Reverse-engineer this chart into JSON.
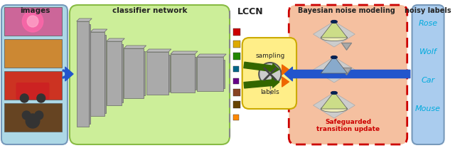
{
  "title": "LCCN",
  "images_label": "images",
  "classifier_label": "classifier network",
  "bayesian_label": "Bayesian noise modeling",
  "noisy_label": "noisy labels",
  "safeguarded_label": "Safeguarded\ntransition update",
  "class_labels": [
    "Rose",
    "Wolf",
    "Car",
    "Mouse"
  ],
  "color_squares": [
    "#cc0000",
    "#ddaa00",
    "#228800",
    "#660088",
    "#884422",
    "#664400",
    "#336600",
    "#ff8800"
  ],
  "bg_images": "#add8e6",
  "bg_classifier": "#ccee99",
  "bg_sampling": "#ffee88",
  "bg_bayesian": "#f5c0a0",
  "bg_noisy": "#aaccee",
  "arrow_blue": "#2255cc",
  "arrow_green": "#336600",
  "arrow_orange": "#ee6600",
  "arrow_gray": "#888888",
  "dashed_color": "#cc0000",
  "text_cyan": "#00aadd",
  "text_red": "#cc0000",
  "text_dark": "#222222",
  "figsize": [
    6.4,
    2.08
  ],
  "dpi": 100
}
